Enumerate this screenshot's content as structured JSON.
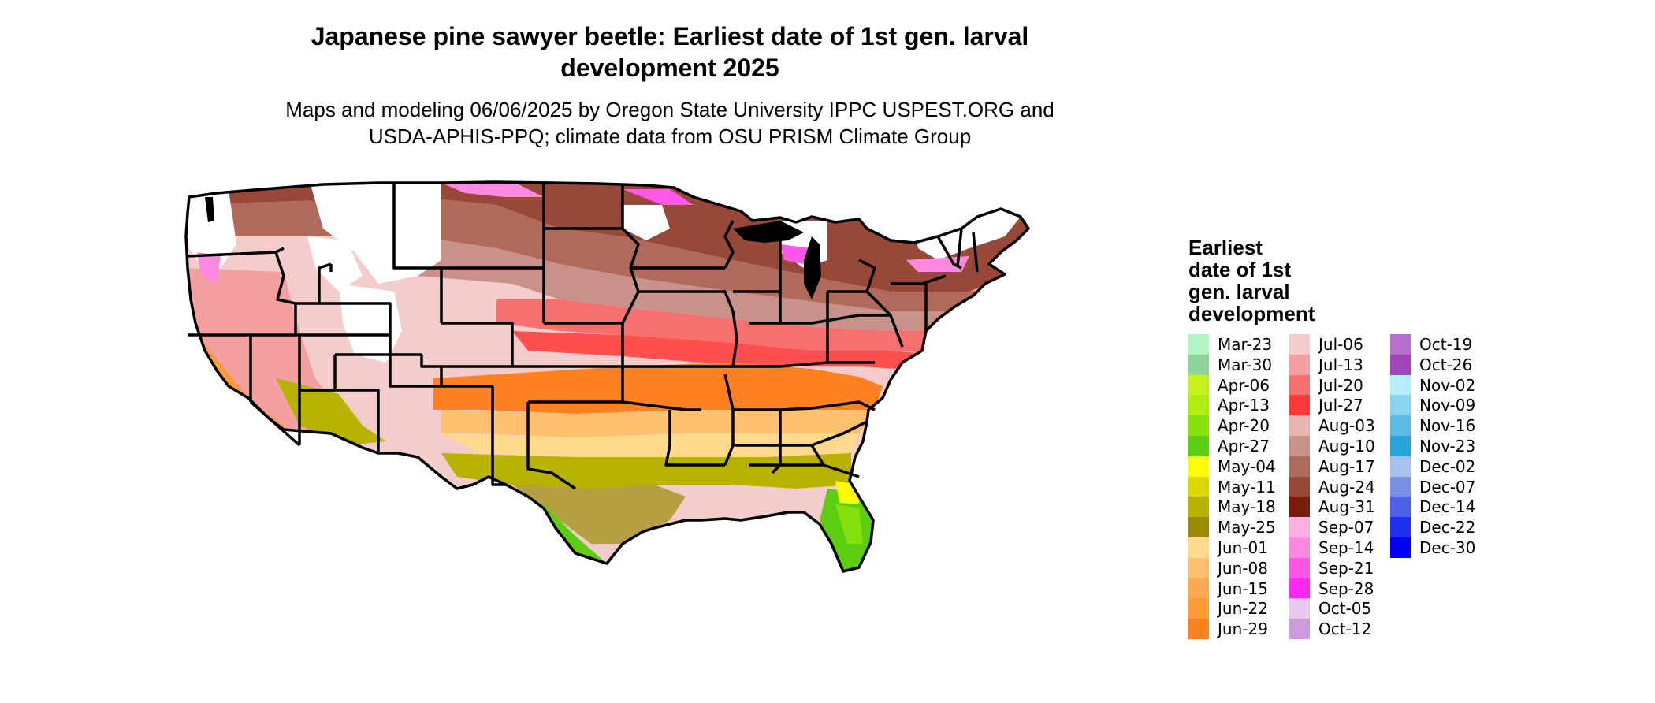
{
  "title_line1": "Japanese pine sawyer beetle: Earliest date of 1st gen. larval",
  "title_line2": "development 2025",
  "subtitle_line1": "Maps and modeling 06/06/2025 by Oregon State University IPPC USPEST.ORG and",
  "subtitle_line2": "USDA-APHIS-PPQ; climate data from OSU PRISM Climate Group",
  "legend": {
    "title_lines": [
      "Earliest",
      "date of 1st",
      "gen. larval",
      "development"
    ],
    "items": [
      {
        "label": "Mar-23",
        "color": "#b3f5c4"
      },
      {
        "label": "Mar-30",
        "color": "#8fd49c"
      },
      {
        "label": "Apr-06",
        "color": "#c8f21e"
      },
      {
        "label": "Apr-13",
        "color": "#b0ee10"
      },
      {
        "label": "Apr-20",
        "color": "#86e00c"
      },
      {
        "label": "Apr-27",
        "color": "#5ccd10"
      },
      {
        "label": "May-04",
        "color": "#ffff00"
      },
      {
        "label": "May-11",
        "color": "#dcd800"
      },
      {
        "label": "May-18",
        "color": "#b8b200"
      },
      {
        "label": "May-25",
        "color": "#9b8b04"
      },
      {
        "label": "Jun-01",
        "color": "#ffd98c"
      },
      {
        "label": "Jun-08",
        "color": "#ffc070"
      },
      {
        "label": "Jun-15",
        "color": "#ffaa52"
      },
      {
        "label": "Jun-22",
        "color": "#ff9a3a"
      },
      {
        "label": "Jun-29",
        "color": "#ff8020"
      },
      {
        "label": "Jul-06",
        "color": "#f5cccc"
      },
      {
        "label": "Jul-13",
        "color": "#f5a0a0"
      },
      {
        "label": "Jul-20",
        "color": "#f77070"
      },
      {
        "label": "Jul-27",
        "color": "#ff3838"
      },
      {
        "label": "Aug-03",
        "color": "#e8b4b0"
      },
      {
        "label": "Aug-10",
        "color": "#c8918a"
      },
      {
        "label": "Aug-17",
        "color": "#b06a5c"
      },
      {
        "label": "Aug-24",
        "color": "#984838"
      },
      {
        "label": "Aug-31",
        "color": "#7a1c0c"
      },
      {
        "label": "Sep-07",
        "color": "#ffb0e0"
      },
      {
        "label": "Sep-14",
        "color": "#ff88e0"
      },
      {
        "label": "Sep-21",
        "color": "#ff58e8"
      },
      {
        "label": "Sep-28",
        "color": "#ff28f0"
      },
      {
        "label": "Oct-05",
        "color": "#e8c8ec"
      },
      {
        "label": "Oct-12",
        "color": "#cc9cdc"
      },
      {
        "label": "Oct-19",
        "color": "#b870cc"
      },
      {
        "label": "Oct-26",
        "color": "#a044b8"
      },
      {
        "label": "Nov-02",
        "color": "#b8ecfc"
      },
      {
        "label": "Nov-09",
        "color": "#88d4f0"
      },
      {
        "label": "Nov-16",
        "color": "#5cbce4"
      },
      {
        "label": "Nov-23",
        "color": "#28a4dc"
      },
      {
        "label": "Dec-02",
        "color": "#a8c0ec"
      },
      {
        "label": "Dec-07",
        "color": "#7890e4"
      },
      {
        "label": "Dec-14",
        "color": "#4c60e8"
      },
      {
        "label": "Dec-22",
        "color": "#2030f0"
      },
      {
        "label": "Dec-30",
        "color": "#0000ff"
      }
    ]
  }
}
